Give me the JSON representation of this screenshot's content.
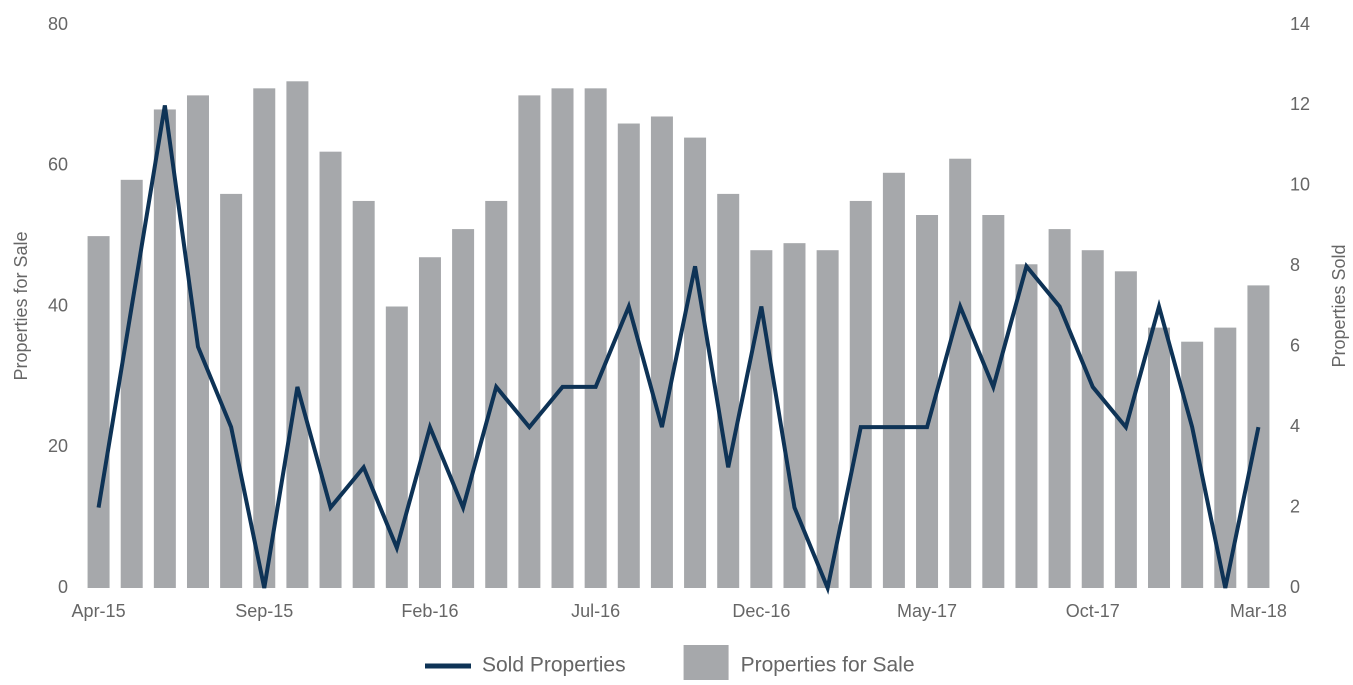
{
  "chart_data": {
    "type": "bar",
    "categories": [
      "Apr-15",
      null,
      null,
      null,
      null,
      "Sep-15",
      null,
      null,
      null,
      null,
      "Feb-16",
      null,
      null,
      null,
      null,
      "Jul-16",
      null,
      null,
      null,
      null,
      "Dec-16",
      null,
      null,
      null,
      null,
      "May-17",
      null,
      null,
      null,
      null,
      "Oct-17",
      null,
      null,
      null,
      null,
      "Mar-18"
    ],
    "series": [
      {
        "name": "Sold Properties",
        "type": "line",
        "axis": "y2",
        "color": "#0e3356",
        "values": [
          2,
          7,
          12,
          6,
          4,
          0,
          5,
          2,
          3,
          1,
          4,
          2,
          5,
          4,
          5,
          5,
          7,
          4,
          8,
          3,
          7,
          2,
          0,
          4,
          4,
          4,
          7,
          5,
          8,
          7,
          5,
          4,
          7,
          4,
          0,
          4
        ]
      },
      {
        "name": "Properties for Sale",
        "type": "bar",
        "axis": "y",
        "color": "#a6a8ab",
        "values": [
          50,
          58,
          68,
          70,
          56,
          71,
          72,
          62,
          55,
          40,
          47,
          51,
          55,
          70,
          71,
          71,
          66,
          67,
          64,
          56,
          48,
          49,
          48,
          55,
          59,
          53,
          61,
          53,
          46,
          51,
          48,
          45,
          37,
          35,
          37,
          43
        ]
      }
    ],
    "y_label": "Properties for Sale",
    "y2_label": "Properties Sold",
    "ylim": [
      0,
      80
    ],
    "yticks": [
      0,
      20,
      40,
      60,
      80
    ],
    "y2lim": [
      0,
      14
    ],
    "y2ticks": [
      0,
      2,
      4,
      6,
      8,
      10,
      12,
      14
    ],
    "legend": "bottom"
  }
}
